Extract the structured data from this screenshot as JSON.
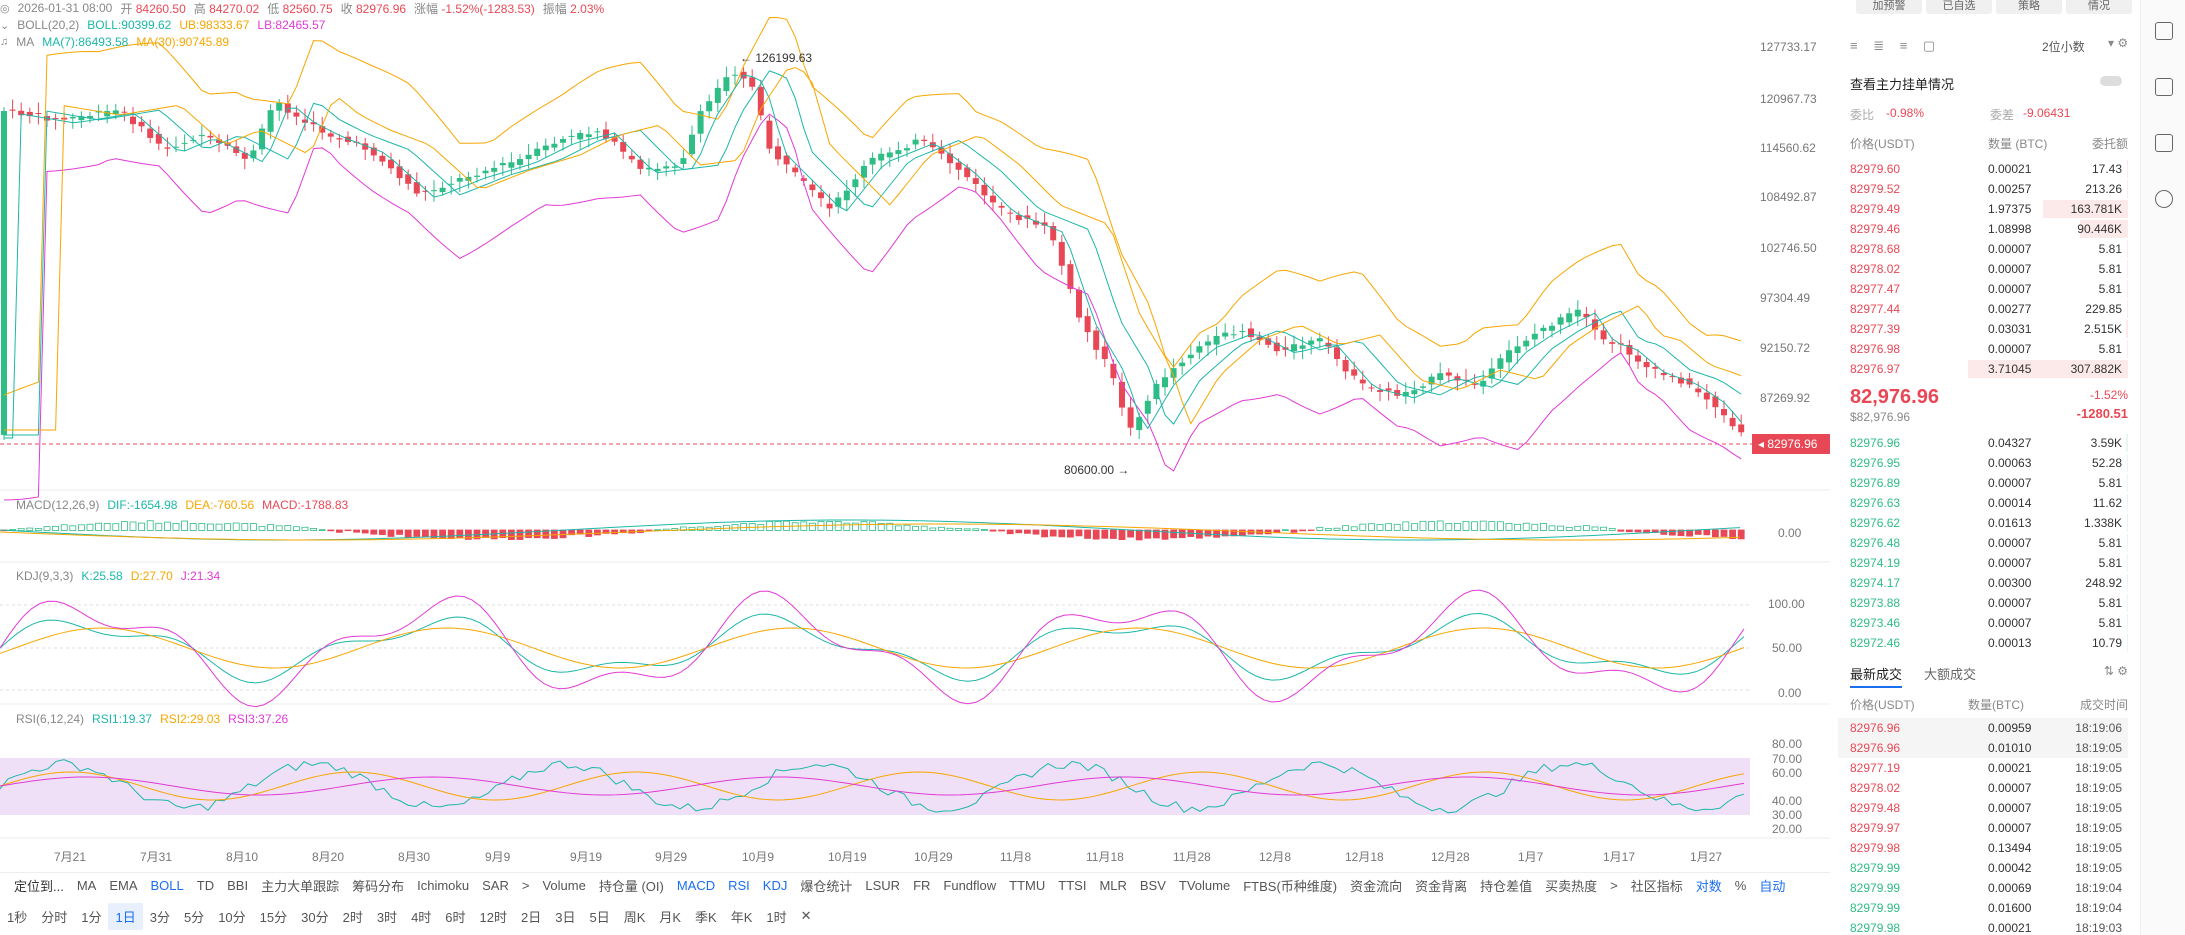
{
  "header": {
    "ohlc_line": {
      "date": "2026-01-31 08:00",
      "open_label": "开",
      "open": "84260.50",
      "high_label": "高",
      "high": "84270.02",
      "low_label": "低",
      "low": "82560.75",
      "close_label": "收",
      "close": "82976.96",
      "change_label": "涨幅",
      "change": "-1.52%(-1283.53)",
      "amp_label": "振幅",
      "amp": "2.03%"
    },
    "boll": {
      "name": "BOLL(20,2)",
      "boll": "BOLL:90399.62",
      "ub": "UB:98333.67",
      "lb": "LB:82465.57"
    },
    "ma": {
      "name": "MA",
      "ma7": "MA(7):86493.58",
      "ma30": "MA(30):90745.89"
    }
  },
  "price_axis": [
    "127733.17",
    "120967.73",
    "114560.62",
    "108492.87",
    "102746.50",
    "97304.49",
    "92150.72",
    "87269.92"
  ],
  "last_price_flag": "82976.96",
  "annotations": {
    "high": "126199.63",
    "low": "80600.00"
  },
  "macd": {
    "name": "MACD(12,26,9)",
    "dif": "DIF:-1654.98",
    "dea": "DEA:-760.56",
    "macd": "MACD:-1788.83",
    "axis": [
      "0.00"
    ]
  },
  "kdj": {
    "name": "KDJ(9,3,3)",
    "k": "K:25.58",
    "d": "D:27.70",
    "j": "J:21.34",
    "axis": [
      "100.00",
      "50.00",
      "0.00"
    ]
  },
  "rsi": {
    "name": "RSI(6,12,24)",
    "rsi1": "RSI1:19.37",
    "rsi2": "RSI2:29.03",
    "rsi3": "RSI3:37.26",
    "axis": [
      "80.00",
      "70.00",
      "60.00",
      "40.00",
      "30.00",
      "20.00"
    ]
  },
  "dates": [
    "7月21",
    "7月31",
    "8月10",
    "8月20",
    "8月30",
    "9月9",
    "9月19",
    "9月29",
    "10月9",
    "10月19",
    "10月29",
    "11月8",
    "11月18",
    "11月28",
    "12月8",
    "12月18",
    "12月28",
    "1月7",
    "1月17",
    "1月27"
  ],
  "indicator_bar": [
    "定位到...",
    "MA",
    "EMA",
    "BOLL",
    "TD",
    "BBI",
    "主力大单跟踪",
    "筹码分布",
    "Ichimoku",
    "SAR",
    ">",
    "Volume",
    "持仓量 (OI)",
    "MACD",
    "RSI",
    "KDJ",
    "爆仓统计",
    "LSUR",
    "FR",
    "Fundflow",
    "TTMU",
    "TTSI",
    "MLR",
    "BSV",
    "TVolume",
    "FTBS(币种维度)",
    "资金流向",
    "资金背离",
    "持仓差值",
    "买卖热度",
    ">",
    "社区指标",
    "对数",
    "%",
    "自动"
  ],
  "timeframes": [
    "1秒",
    "分时",
    "1分",
    "1日",
    "3分",
    "5分",
    "10分",
    "15分",
    "30分",
    "2时",
    "3时",
    "4时",
    "6时",
    "12时",
    "2日",
    "3日",
    "5日",
    "周K",
    "月K",
    "季K",
    "年K",
    "1时",
    "✕"
  ],
  "orderbook": {
    "top_buttons": [
      "加预警",
      "已自选",
      "策略",
      "情况"
    ],
    "decimals": "2位小数",
    "link": "查看主力挂单情况",
    "ratio_label": "委比",
    "ratio": "-0.98%",
    "diff_label": "委差",
    "diff": "-9.06431",
    "cols": [
      "价格(USDT)",
      "数量 (BTC)",
      "委托额"
    ],
    "asks": [
      {
        "p": "82979.60",
        "q": "0.00021",
        "t": "17.43",
        "w": 0.0
      },
      {
        "p": "82979.52",
        "q": "0.00257",
        "t": "213.26",
        "w": 0.0
      },
      {
        "p": "82979.49",
        "q": "1.97375",
        "t": "163.781K",
        "w": 0.53
      },
      {
        "p": "82979.46",
        "q": "1.08998",
        "t": "90.446K",
        "w": 0.3
      },
      {
        "p": "82978.68",
        "q": "0.00007",
        "t": "5.81",
        "w": 0
      },
      {
        "p": "82978.02",
        "q": "0.00007",
        "t": "5.81",
        "w": 0
      },
      {
        "p": "82977.47",
        "q": "0.00007",
        "t": "5.81",
        "w": 0
      },
      {
        "p": "82977.44",
        "q": "0.00277",
        "t": "229.85",
        "w": 0
      },
      {
        "p": "82977.39",
        "q": "0.03031",
        "t": "2.515K",
        "w": 0.01
      },
      {
        "p": "82976.98",
        "q": "0.00007",
        "t": "5.81",
        "w": 0
      },
      {
        "p": "82976.97",
        "q": "3.71045",
        "t": "307.882K",
        "w": 1.0
      }
    ],
    "last_price": "82,976.96",
    "last_usd": "$82,976.96",
    "change_pct": "-1.52%",
    "change_abs": "-1280.51",
    "bids": [
      {
        "p": "82976.96",
        "q": "0.04327",
        "t": "3.59K",
        "w": 0.01
      },
      {
        "p": "82976.95",
        "q": "0.00063",
        "t": "52.28",
        "w": 0
      },
      {
        "p": "82976.89",
        "q": "0.00007",
        "t": "5.81",
        "w": 0
      },
      {
        "p": "82976.63",
        "q": "0.00014",
        "t": "11.62",
        "w": 0
      },
      {
        "p": "82976.62",
        "q": "0.01613",
        "t": "1.338K",
        "w": 0.005
      },
      {
        "p": "82976.48",
        "q": "0.00007",
        "t": "5.81",
        "w": 0
      },
      {
        "p": "82974.19",
        "q": "0.00007",
        "t": "5.81",
        "w": 0
      },
      {
        "p": "82974.17",
        "q": "0.00300",
        "t": "248.92",
        "w": 0
      },
      {
        "p": "82973.88",
        "q": "0.00007",
        "t": "5.81",
        "w": 0
      },
      {
        "p": "82973.46",
        "q": "0.00007",
        "t": "5.81",
        "w": 0
      },
      {
        "p": "82972.46",
        "q": "0.00013",
        "t": "10.79",
        "w": 0
      }
    ]
  },
  "trades": {
    "tabs": [
      "最新成交",
      "大额成交"
    ],
    "cols": [
      "价格(USDT)",
      "数量(BTC)",
      "成交时间"
    ],
    "rows": [
      {
        "p": "82976.96",
        "q": "0.00959",
        "t": "18:19:06",
        "s": "sell"
      },
      {
        "p": "82976.96",
        "q": "0.01010",
        "t": "18:19:05",
        "s": "sell"
      },
      {
        "p": "82977.19",
        "q": "0.00021",
        "t": "18:19:05",
        "s": "sell"
      },
      {
        "p": "82978.02",
        "q": "0.00007",
        "t": "18:19:05",
        "s": "sell"
      },
      {
        "p": "82979.48",
        "q": "0.00007",
        "t": "18:19:05",
        "s": "sell"
      },
      {
        "p": "82979.97",
        "q": "0.00007",
        "t": "18:19:05",
        "s": "sell"
      },
      {
        "p": "82979.98",
        "q": "0.13494",
        "t": "18:19:05",
        "s": "sell"
      },
      {
        "p": "82979.99",
        "q": "0.00042",
        "t": "18:19:05",
        "s": "buy"
      },
      {
        "p": "82979.99",
        "q": "0.00069",
        "t": "18:19:04",
        "s": "buy"
      },
      {
        "p": "82979.99",
        "q": "0.01600",
        "t": "18:19:04",
        "s": "buy"
      },
      {
        "p": "82979.98",
        "q": "0.00021",
        "t": "18:19:03",
        "s": "buy"
      }
    ]
  },
  "colors": {
    "up": "#2ebd85",
    "down": "#e84855",
    "boll_ub": "#f7a600",
    "boll_lb": "#e23ad6",
    "ma7": "#1cb7a8",
    "ma30": "#f7a600",
    "accent": "#1a6ef0"
  }
}
